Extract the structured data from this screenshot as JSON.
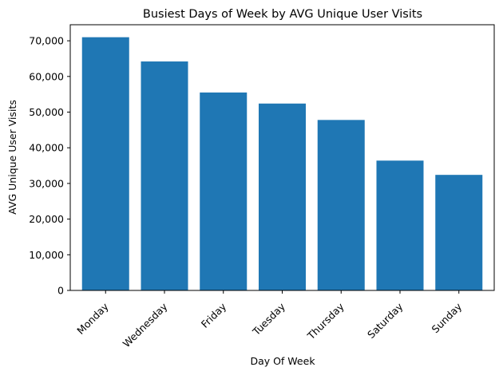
{
  "chart_data": {
    "type": "bar",
    "title": "Busiest Days of Week by AVG Unique User Visits",
    "xlabel": "Day Of Week",
    "ylabel": "AVG Unique User Visits",
    "categories": [
      "Monday",
      "Wednesday",
      "Friday",
      "Tuesday",
      "Thursday",
      "Saturday",
      "Sunday"
    ],
    "values": [
      71000,
      64200,
      55500,
      52400,
      47800,
      36400,
      32400
    ],
    "ylim": [
      0,
      74500
    ],
    "yticks": [
      0,
      10000,
      20000,
      30000,
      40000,
      50000,
      60000,
      70000
    ],
    "ytick_labels": [
      "0",
      "10,000",
      "20,000",
      "30,000",
      "40,000",
      "50,000",
      "60,000",
      "70,000"
    ],
    "bar_color": "#1f77b4",
    "grid": false,
    "legend": false
  }
}
